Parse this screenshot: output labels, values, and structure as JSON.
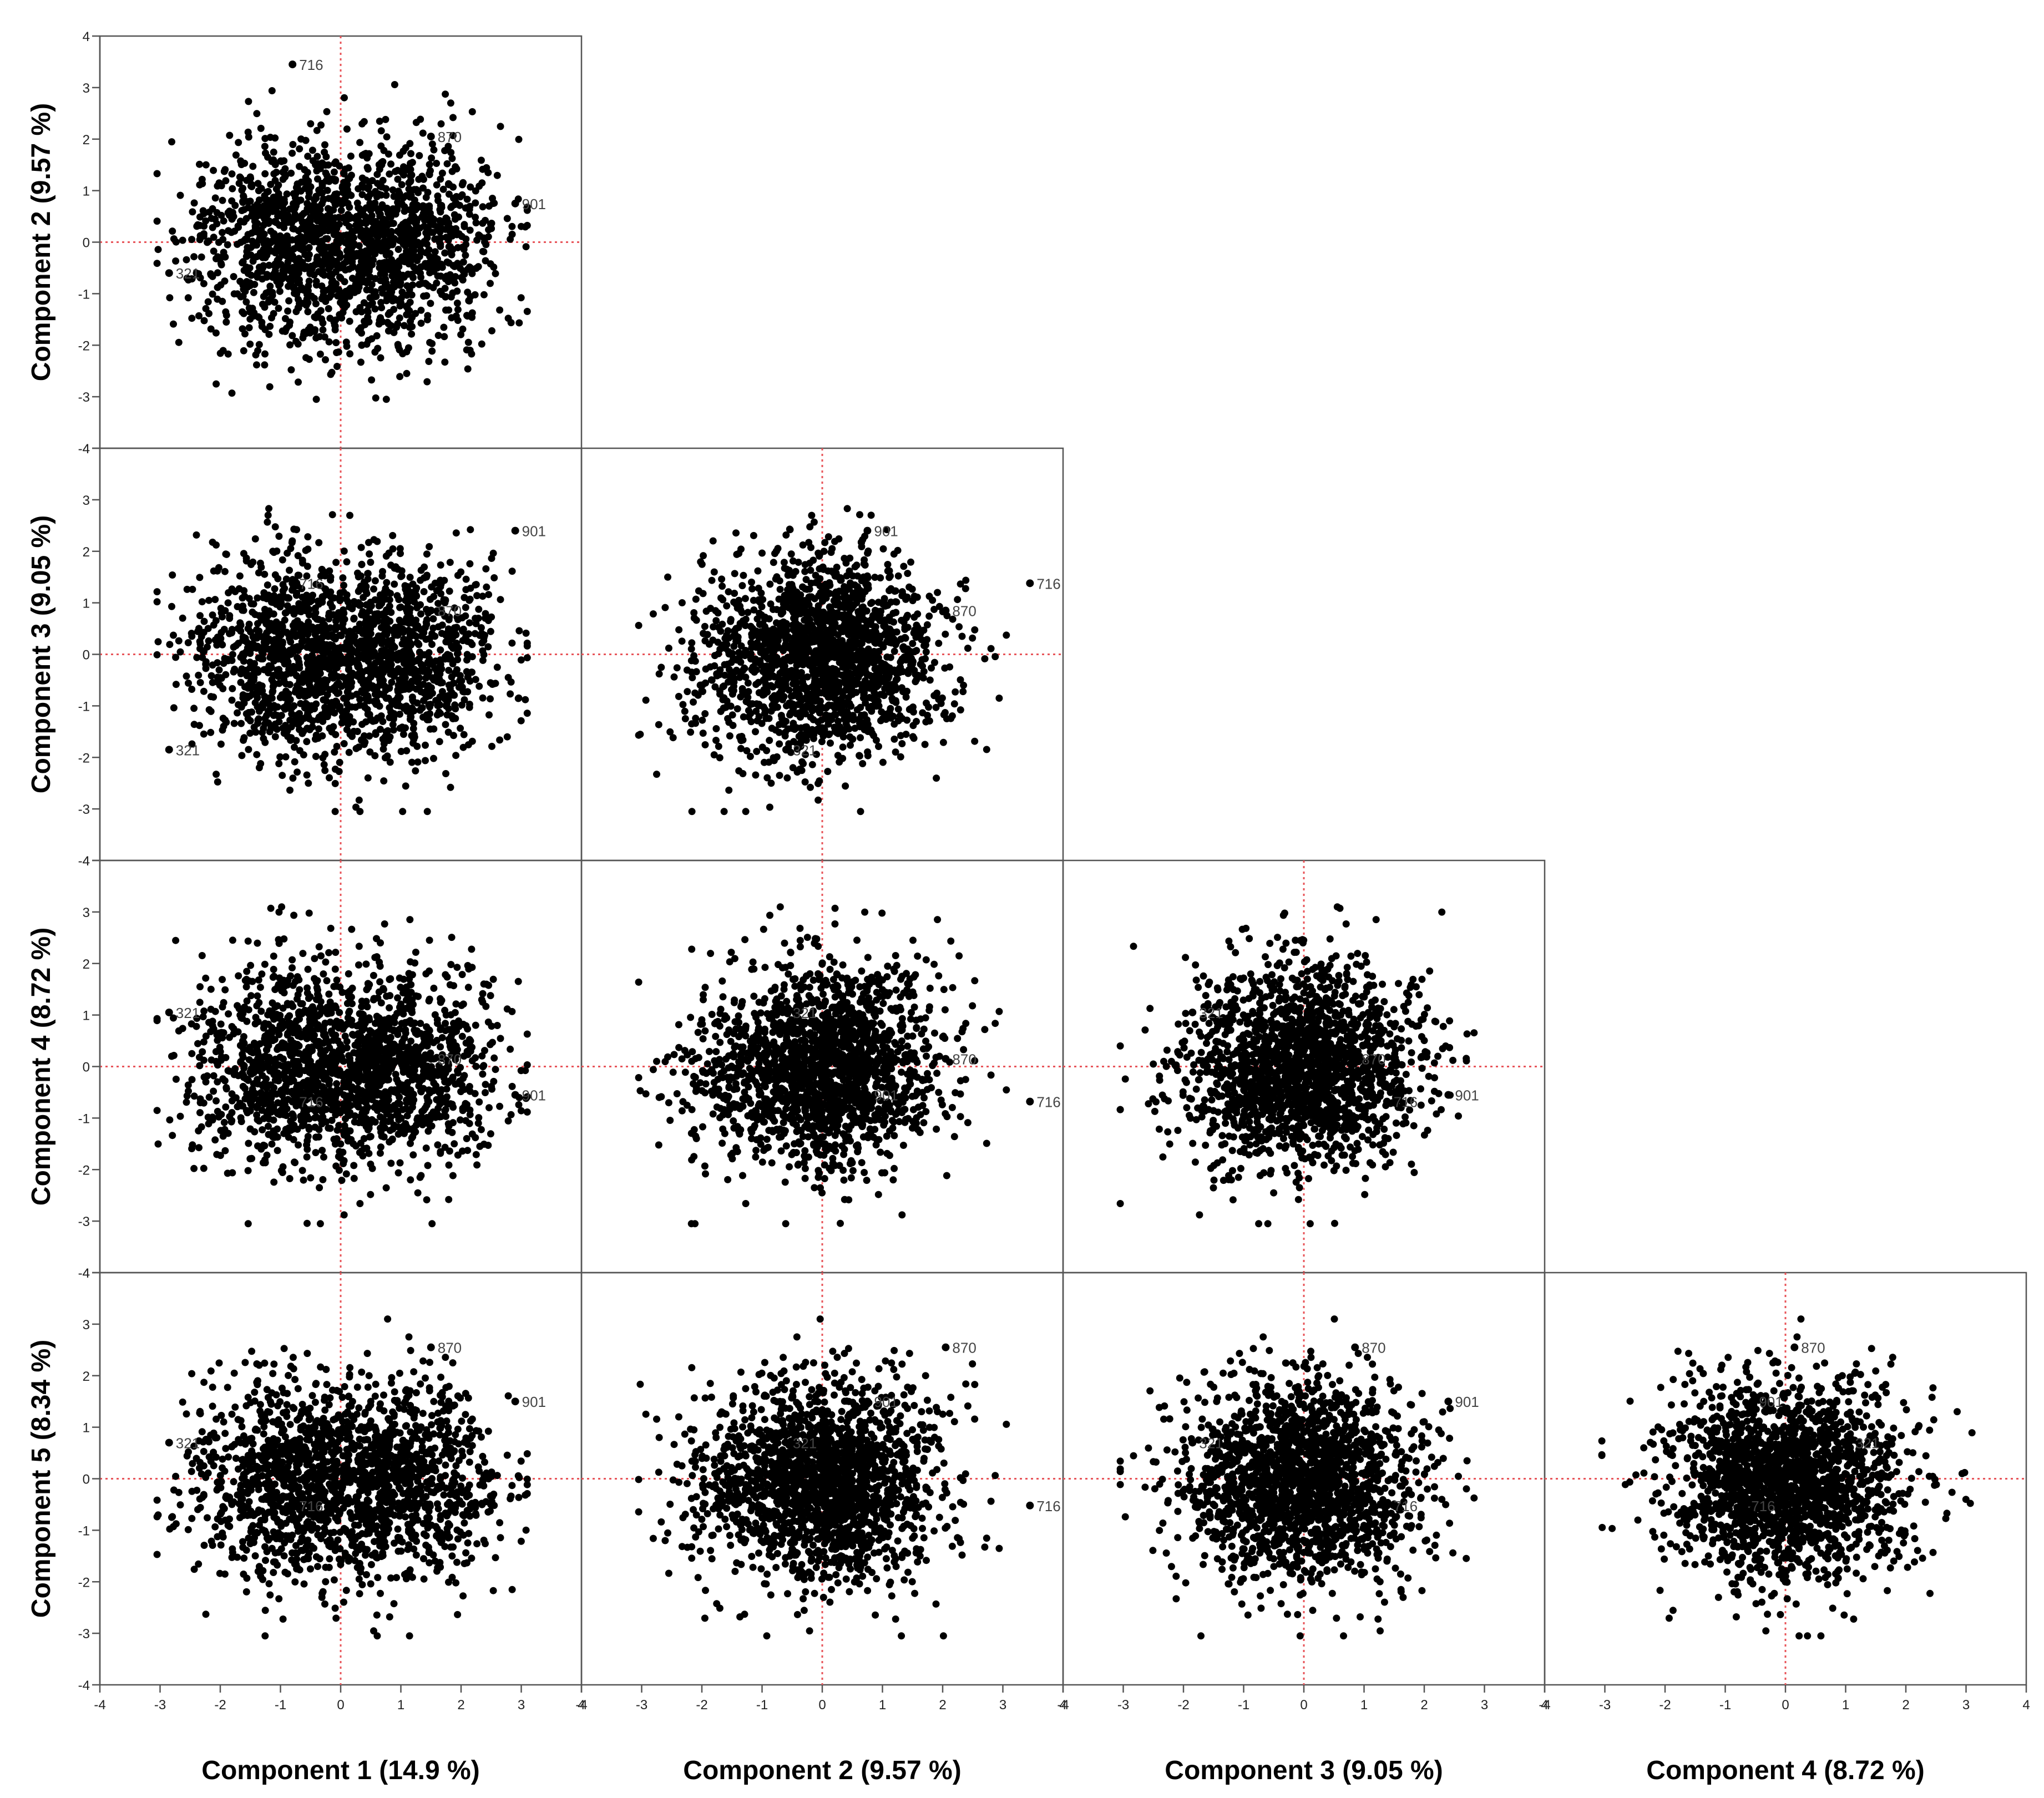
{
  "chart_data": {
    "type": "scatter",
    "layout": "scatterplot-matrix-lower-triangle",
    "axis_range": [
      -4,
      4
    ],
    "x_ticks": [
      -4,
      -3,
      -2,
      -1,
      0,
      1,
      2,
      3,
      4
    ],
    "y_ticks": [
      -4,
      -3,
      -2,
      -1,
      0,
      1,
      2,
      3,
      4
    ],
    "components": [
      {
        "name": "Component 1",
        "axis_label": "Component 1 (14.9 %)"
      },
      {
        "name": "Component 2",
        "axis_label": "Component 2 (9.57 %)"
      },
      {
        "name": "Component 3",
        "axis_label": "Component 3 (9.05 %)"
      },
      {
        "name": "Component 4",
        "axis_label": "Component 4 (8.72 %)"
      },
      {
        "name": "Component 5",
        "axis_label": "Component 5 (8.34 %)"
      }
    ],
    "x_axis_labels": [
      "Component 1 (14.9 %)",
      "Component 2 (9.57 %)",
      "Component 3 (9.05 %)",
      "Component 4 (8.72 %)"
    ],
    "y_axis_labels": [
      "Component 2 (9.57 %)",
      "Component 3 (9.05 %)",
      "Component 4 (8.72 %)",
      "Component 5 (8.34 %)"
    ],
    "reference_lines": {
      "x": 0,
      "y": 0,
      "color": "#e8555a",
      "style": "dotted"
    },
    "point_color": "#000000",
    "labeled_observations": [
      {
        "label": "716",
        "scores": [
          -0.8,
          3.45,
          1.38,
          -0.68,
          -0.52
        ]
      },
      {
        "label": "870",
        "scores": [
          1.5,
          2.05,
          0.85,
          0.15,
          2.55
        ]
      },
      {
        "label": "901",
        "scores": [
          2.9,
          0.75,
          2.4,
          -0.55,
          1.5
        ]
      },
      {
        "label": "321",
        "scores": [
          -2.85,
          -0.6,
          -1.85,
          1.05,
          0.7
        ]
      }
    ],
    "panels": [
      {
        "row": 1,
        "col": 1,
        "x": "Component 1",
        "y": "Component 2"
      },
      {
        "row": 2,
        "col": 1,
        "x": "Component 1",
        "y": "Component 3"
      },
      {
        "row": 2,
        "col": 2,
        "x": "Component 2",
        "y": "Component 3"
      },
      {
        "row": 3,
        "col": 1,
        "x": "Component 1",
        "y": "Component 4"
      },
      {
        "row": 3,
        "col": 2,
        "x": "Component 2",
        "y": "Component 4"
      },
      {
        "row": 3,
        "col": 3,
        "x": "Component 3",
        "y": "Component 4"
      },
      {
        "row": 4,
        "col": 1,
        "x": "Component 1",
        "y": "Component 5"
      },
      {
        "row": 4,
        "col": 2,
        "x": "Component 2",
        "y": "Component 5"
      },
      {
        "row": 4,
        "col": 3,
        "x": "Component 3",
        "y": "Component 5"
      },
      {
        "row": 4,
        "col": 4,
        "x": "Component 4",
        "y": "Component 5"
      }
    ],
    "observation_count_approx": 1800
  }
}
